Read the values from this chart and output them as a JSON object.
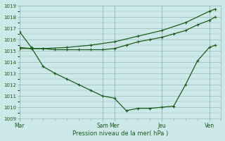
{
  "background_color": "#cce8e8",
  "grid_color": "#99bbbb",
  "line_color": "#1a5c1a",
  "marker_color": "#1a5c1a",
  "xlabel": "Pression niveau de la mer( hPa )",
  "ylim": [
    1009,
    1019
  ],
  "yticks": [
    1009,
    1010,
    1011,
    1012,
    1013,
    1014,
    1015,
    1016,
    1017,
    1018,
    1019
  ],
  "day_labels": [
    "Mar",
    "Sam",
    "Mer",
    "Jeu",
    "Ven"
  ],
  "day_x": [
    0,
    7,
    8,
    12,
    16
  ],
  "xlim": [
    0,
    17
  ],
  "line1_x": [
    0,
    1,
    2,
    3,
    4,
    5,
    6,
    7,
    8,
    9,
    10,
    11,
    12,
    13,
    14,
    15,
    16,
    16.5
  ],
  "line1_y": [
    1016.7,
    1015.3,
    1013.6,
    1013.0,
    1012.5,
    1012.0,
    1011.5,
    1011.0,
    1010.8,
    1009.7,
    1009.9,
    1009.9,
    1010.0,
    1010.1,
    1012.0,
    1014.1,
    1015.3,
    1015.5
  ],
  "line2_x": [
    0,
    1,
    2,
    3,
    4,
    5,
    6,
    7,
    8,
    9,
    10,
    11,
    12,
    13,
    14,
    15,
    16,
    16.5
  ],
  "line2_y": [
    1015.3,
    1015.2,
    1015.2,
    1015.1,
    1015.1,
    1015.1,
    1015.1,
    1015.1,
    1015.2,
    1015.5,
    1015.8,
    1016.0,
    1016.2,
    1016.5,
    1016.8,
    1017.3,
    1017.7,
    1018.0
  ],
  "line3_x": [
    0,
    2,
    4,
    6,
    8,
    10,
    12,
    14,
    16,
    16.5
  ],
  "line3_y": [
    1015.2,
    1015.2,
    1015.3,
    1015.5,
    1015.8,
    1016.3,
    1016.8,
    1017.5,
    1018.5,
    1018.7
  ]
}
